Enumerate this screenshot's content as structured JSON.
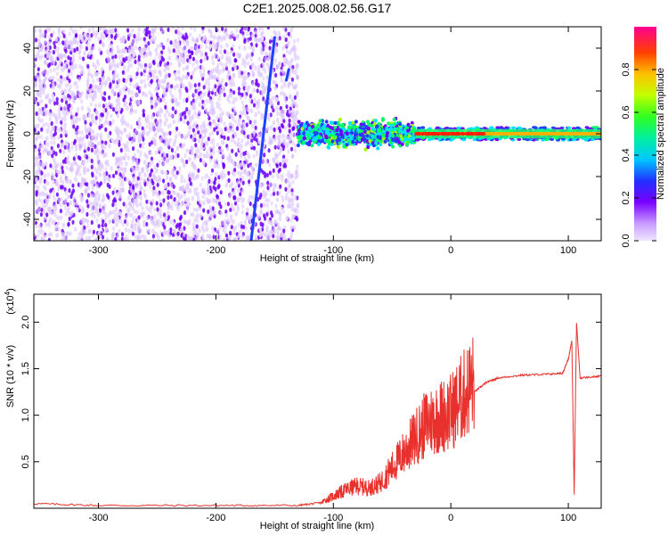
{
  "title": "C2E1.2025.008.02.56.G17",
  "chart_data": [
    {
      "type": "heatmap",
      "xlabel": "Height of straight line (km)",
      "ylabel": "Frequency (Hz)",
      "xlim": [
        -355,
        128
      ],
      "ylim": [
        -50,
        50
      ],
      "xticks": [
        -300,
        -200,
        -100,
        0,
        100
      ],
      "yticks": [
        -40,
        -20,
        0,
        20,
        40
      ],
      "colorbar": {
        "label": "Normalized spectral amplitude",
        "range": [
          0,
          1
        ],
        "ticks": [
          0.0,
          0.2,
          0.4,
          0.6,
          0.8
        ],
        "colormap": [
          "#e8d8ff",
          "#7000ff",
          "#2040ff",
          "#00e0ff",
          "#00ff60",
          "#a0ff00",
          "#ffd000",
          "#ff6000",
          "#ff0000",
          "#ff0080"
        ]
      },
      "regions": [
        {
          "x": [
            -355,
            -130
          ],
          "f": [
            -50,
            50
          ],
          "amplitude": 0.15,
          "note": "scattered noise"
        },
        {
          "x": [
            -130,
            -30
          ],
          "f": [
            -8,
            8
          ],
          "amplitude": 0.45
        },
        {
          "x": [
            -30,
            128
          ],
          "f": [
            -3,
            3
          ],
          "amplitude": 0.6
        },
        {
          "x": [
            -30,
            128
          ],
          "f": [
            -0.6,
            0.6
          ],
          "amplitude": 0.9
        }
      ],
      "streaks": [
        {
          "x": [
            -170,
            -150
          ],
          "f": [
            -50,
            45
          ]
        },
        {
          "x": [
            -140,
            -138
          ],
          "f": [
            25,
            30
          ]
        }
      ]
    },
    {
      "type": "line",
      "xlabel": "Height of straight line (km)",
      "ylabel": "SNR (10 * v/v)",
      "y_multiplier": "(x10",
      "y_multiplier_exp": "4",
      "y_multiplier_close": ")",
      "xlim": [
        -355,
        128
      ],
      "ylim": [
        0,
        2.3
      ],
      "xticks": [
        -300,
        -200,
        -100,
        0,
        100
      ],
      "yticks": [
        0.5,
        1.0,
        1.5,
        2.0
      ],
      "series_color": "#e8312c",
      "x": [
        -355,
        -300,
        -200,
        -130,
        -110,
        -100,
        -90,
        -80,
        -70,
        -60,
        -50,
        -40,
        -30,
        -20,
        -10,
        0,
        10,
        20,
        30,
        40,
        60,
        80,
        95,
        100,
        103,
        105,
        107,
        110,
        128
      ],
      "y": [
        0.05,
        0.03,
        0.03,
        0.03,
        0.06,
        0.12,
        0.18,
        0.22,
        0.2,
        0.25,
        0.4,
        0.55,
        0.7,
        0.85,
        0.9,
        0.95,
        1.1,
        1.25,
        1.35,
        1.4,
        1.43,
        1.44,
        1.45,
        1.6,
        1.8,
        0.15,
        2.0,
        1.4,
        1.42
      ]
    }
  ],
  "ui": {
    "x_tick_labels": [
      "-300",
      "-200",
      "-100",
      "0",
      "100"
    ],
    "top_y_tick_labels": [
      "-40",
      "-20",
      "0",
      "20",
      "40"
    ],
    "bottom_y_tick_labels": [
      "0.5",
      "1.0",
      "1.5",
      "2.0"
    ],
    "cbar_tick_labels": [
      "0.0",
      "0.2",
      "0.4",
      "0.6",
      "0.8"
    ]
  }
}
